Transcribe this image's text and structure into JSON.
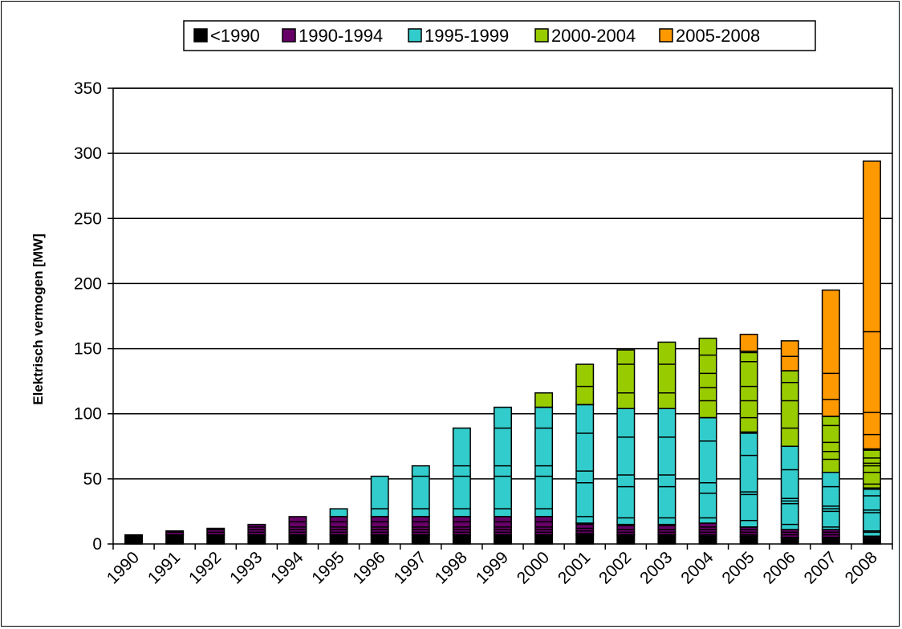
{
  "chart_data": {
    "type": "bar",
    "stacked": true,
    "title": "",
    "xlabel": "",
    "ylabel": "Elektrisch vermogen [MW]",
    "ylim": [
      0,
      350
    ],
    "yticks": [
      0,
      50,
      100,
      150,
      200,
      250,
      300,
      350
    ],
    "grid": "horizontal",
    "legend_position": "top",
    "categories": [
      "1990",
      "1991",
      "1992",
      "1993",
      "1994",
      "1995",
      "1996",
      "1997",
      "1998",
      "1999",
      "2000",
      "2001",
      "2002",
      "2003",
      "2004",
      "2005",
      "2006",
      "2007",
      "2008"
    ],
    "series": [
      {
        "name": "<1990",
        "color": "#000000",
        "values": [
          7,
          7,
          7,
          7,
          7,
          7,
          7,
          7,
          7,
          7,
          7,
          7,
          7,
          7,
          6,
          6,
          5,
          5,
          4
        ]
      },
      {
        "name": "1990-1994",
        "color": "#660066",
        "values": [
          0,
          3,
          5,
          8,
          14,
          14,
          14,
          14,
          14,
          14,
          14,
          9,
          8,
          8,
          10,
          7,
          6,
          6,
          2
        ]
      },
      {
        "name": "1995-1999",
        "color": "#33CCCC",
        "values": [
          0,
          0,
          0,
          0,
          0,
          6,
          31,
          39,
          68,
          84,
          84,
          91,
          89,
          89,
          81,
          73,
          64,
          44,
          37
        ]
      },
      {
        "name": "2000-2004",
        "color": "#99CC00",
        "values": [
          0,
          0,
          0,
          0,
          0,
          0,
          0,
          0,
          0,
          0,
          11,
          31,
          45,
          51,
          61,
          62,
          58,
          43,
          30
        ]
      },
      {
        "name": "2005-2008",
        "color": "#FF9900",
        "values": [
          0,
          0,
          0,
          0,
          0,
          0,
          0,
          0,
          0,
          0,
          0,
          0,
          0,
          0,
          0,
          13,
          23,
          97,
          221
        ]
      }
    ],
    "segment_lines": [
      [],
      [
        9
      ],
      [
        9,
        11
      ],
      [
        9,
        11,
        13
      ],
      [
        9,
        11,
        13,
        17
      ],
      [
        9,
        11,
        13,
        17,
        21
      ],
      [
        9,
        11,
        13,
        17,
        21,
        27
      ],
      [
        9,
        11,
        13,
        17,
        21,
        27,
        52
      ],
      [
        9,
        11,
        13,
        17,
        21,
        27,
        52,
        60
      ],
      [
        9,
        11,
        13,
        17,
        21,
        27,
        52,
        60,
        89
      ],
      [
        9,
        11,
        13,
        17,
        21,
        27,
        52,
        60,
        89,
        105
      ],
      [
        5,
        8,
        10,
        12,
        15,
        21,
        47,
        56,
        85,
        107,
        121
      ],
      [
        4,
        7,
        9,
        11,
        14,
        20,
        44,
        53,
        82,
        104,
        116,
        138
      ],
      [
        4,
        7,
        9,
        11,
        14,
        20,
        44,
        53,
        82,
        104,
        116,
        138
      ],
      [
        4,
        7,
        9,
        11,
        13,
        20,
        39,
        47,
        79,
        97,
        110,
        120,
        131,
        145
      ],
      [
        3,
        5,
        7,
        9,
        11,
        13,
        18,
        38,
        40,
        68,
        85,
        97,
        110,
        121,
        140,
        147
      ],
      [
        3,
        5,
        7,
        9,
        11,
        15,
        31,
        33,
        35,
        57,
        75,
        89,
        110,
        124,
        133,
        144
      ],
      [
        3,
        5,
        7,
        9,
        11,
        13,
        25,
        27,
        29,
        44,
        55,
        65,
        71,
        78,
        91,
        98,
        111,
        131
      ],
      [
        3,
        5,
        9,
        10,
        24,
        26,
        37,
        42,
        46,
        55,
        60,
        62,
        66,
        72,
        84,
        101,
        163
      ]
    ]
  }
}
